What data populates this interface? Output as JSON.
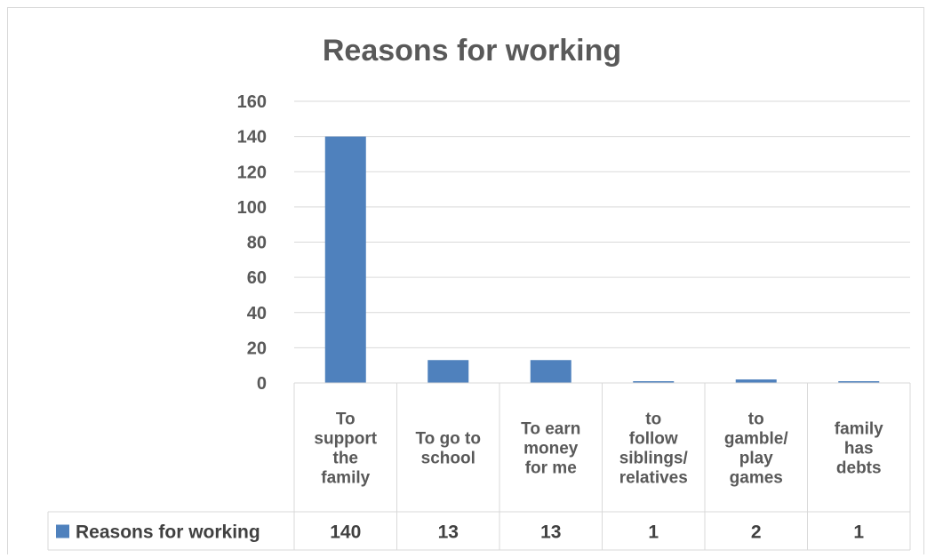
{
  "chart_data": {
    "type": "bar",
    "title": "Reasons for working",
    "categories": [
      [
        "To",
        "support",
        "the",
        "family"
      ],
      [
        "To go to",
        "school"
      ],
      [
        "To earn",
        "money",
        "for me"
      ],
      [
        "to",
        "follow",
        "siblings/",
        "relatives"
      ],
      [
        "to",
        "gamble/",
        "play",
        "games"
      ],
      [
        "family",
        "has",
        "debts"
      ]
    ],
    "series": [
      {
        "name": "Reasons for working",
        "values": [
          140,
          13,
          13,
          1,
          2,
          1
        ],
        "color": "#4f81bd"
      }
    ],
    "ylim": [
      0,
      160
    ],
    "yticks": [
      0,
      20,
      40,
      60,
      80,
      100,
      120,
      140,
      160
    ],
    "grid": true,
    "legend": "data-table-bottom"
  }
}
